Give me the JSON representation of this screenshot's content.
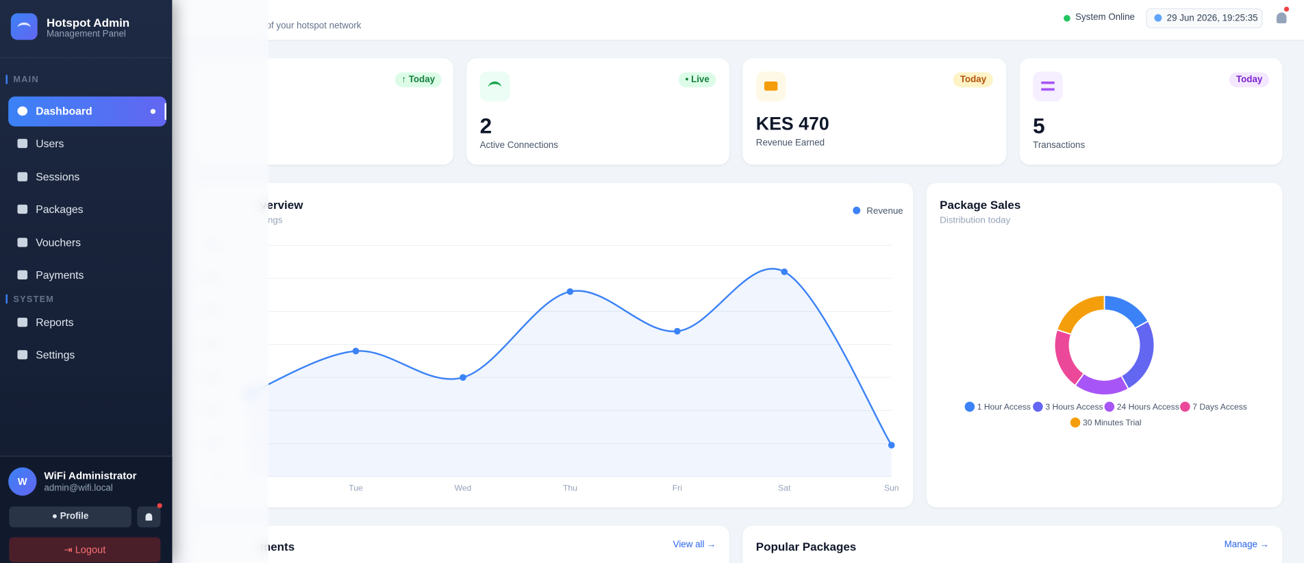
{
  "sidebar": {
    "brand": "Hotspot Admin",
    "subtitle": "Management Panel",
    "sections": [
      {
        "label": "MAIN",
        "items": [
          "Dashboard",
          "Users",
          "Sessions",
          "Packages",
          "Vouchers",
          "Payments"
        ]
      },
      {
        "label": "SYSTEM",
        "items": [
          "Reports",
          "Settings"
        ]
      }
    ],
    "user": {
      "initial": "W",
      "name": "WiFi Administrator",
      "email": "admin@wifi.local"
    },
    "profile": "Profile",
    "logout": "Logout"
  },
  "header": {
    "subtitle": "of your hotspot network",
    "status": "System Online",
    "datetime": "29 Jun 2026, 19:25:35"
  },
  "cards": [
    {
      "badge": "Today"
    },
    {
      "badge": "Live",
      "value": "2",
      "label": "Active Connections"
    },
    {
      "badge": "Today",
      "value": "KES 470",
      "label": "Revenue Earned"
    },
    {
      "badge": "Today",
      "value": "5",
      "label": "Transactions"
    }
  ],
  "chart_data": [
    {
      "type": "line",
      "title": "verview",
      "subtitle": "ngs",
      "categories": [
        null,
        "Tue",
        "Wed",
        "Thu",
        "Fri",
        "Sat",
        "Sun"
      ],
      "series": [
        {
          "name": "Revenue",
          "color": "#3b82f6",
          "values": [
            250,
            380,
            300,
            560,
            440,
            620,
            95
          ]
        }
      ],
      "ylim": [
        0,
        700
      ],
      "yticks": [
        0,
        100,
        200,
        300,
        400,
        500,
        600,
        700
      ],
      "grid": true
    },
    {
      "type": "pie",
      "title": "Package Sales",
      "subtitle": "Distribution today",
      "categories": [
        "1 Hour Access",
        "3 Hours Access",
        "24 Hours Access",
        "7 Days Access",
        "30 Minutes Trial"
      ],
      "values": [
        17,
        25,
        18,
        20,
        20
      ],
      "colors": [
        "#3b82f6",
        "#6366f1",
        "#a855f7",
        "#ec4899",
        "#f59e0b"
      ]
    }
  ],
  "panels": [
    {
      "title": "ments",
      "link": "View all →"
    },
    {
      "title": "Popular Packages",
      "link": "Manage →"
    }
  ]
}
